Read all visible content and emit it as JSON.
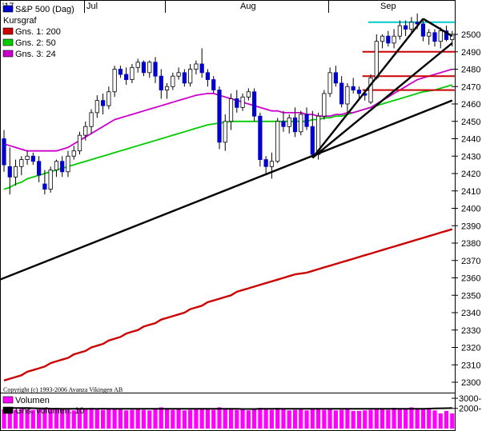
{
  "chart_data": {
    "type": "candlestick",
    "legend": [
      {
        "label": "S&P 500 (Dag)",
        "color": "#0000cc"
      },
      {
        "label": "Kursgraf",
        "color": ""
      },
      {
        "label": "Gns. 1: 200",
        "color": "#cc0000"
      },
      {
        "label": "Gns. 2: 50",
        "color": "#00cc00"
      },
      {
        "label": "Gns. 3: 24",
        "color": "#cc00cc"
      }
    ],
    "month_labels": [
      "'17",
      "Jul",
      "Aug",
      "Sep"
    ],
    "y_ticks": [
      2300,
      2310,
      2320,
      2330,
      2340,
      2350,
      2360,
      2370,
      2380,
      2390,
      2400,
      2410,
      2420,
      2430,
      2440,
      2450,
      2460,
      2470,
      2480,
      2490,
      2500
    ],
    "ylim": [
      2295,
      2512
    ],
    "candles": [
      [
        2440,
        2445,
        2421,
        2425
      ],
      [
        2424,
        2435,
        2408,
        2418
      ],
      [
        2418,
        2428,
        2413,
        2424
      ],
      [
        2424,
        2430,
        2419,
        2428
      ],
      [
        2428,
        2433,
        2425,
        2430
      ],
      [
        2430,
        2432,
        2425,
        2427
      ],
      [
        2427,
        2430,
        2415,
        2419
      ],
      [
        2414,
        2422,
        2408,
        2411
      ],
      [
        2411,
        2424,
        2409,
        2422
      ],
      [
        2422,
        2428,
        2418,
        2427
      ],
      [
        2427,
        2430,
        2418,
        2421
      ],
      [
        2421,
        2433,
        2418,
        2430
      ],
      [
        2430,
        2436,
        2428,
        2433
      ],
      [
        2433,
        2444,
        2431,
        2442
      ],
      [
        2442,
        2450,
        2439,
        2447
      ],
      [
        2447,
        2457,
        2443,
        2455
      ],
      [
        2455,
        2465,
        2452,
        2462
      ],
      [
        2462,
        2466,
        2454,
        2459
      ],
      [
        2459,
        2470,
        2457,
        2467
      ],
      [
        2467,
        2482,
        2464,
        2480
      ],
      [
        2480,
        2482,
        2475,
        2477
      ],
      [
        2477,
        2481,
        2471,
        2474
      ],
      [
        2474,
        2483,
        2472,
        2481
      ],
      [
        2481,
        2486,
        2478,
        2484
      ],
      [
        2484,
        2485,
        2476,
        2478
      ],
      [
        2478,
        2485,
        2475,
        2484
      ],
      [
        2484,
        2487,
        2472,
        2476
      ],
      [
        2476,
        2480,
        2463,
        2468
      ],
      [
        2468,
        2472,
        2463,
        2470
      ],
      [
        2470,
        2478,
        2468,
        2476
      ],
      [
        2476,
        2481,
        2474,
        2478
      ],
      [
        2478,
        2480,
        2470,
        2472
      ],
      [
        2472,
        2483,
        2470,
        2480
      ],
      [
        2480,
        2485,
        2477,
        2483
      ],
      [
        2483,
        2492,
        2475,
        2478
      ],
      [
        2478,
        2480,
        2470,
        2474
      ],
      [
        2474,
        2476,
        2466,
        2468
      ],
      [
        2468,
        2470,
        2434,
        2438
      ],
      [
        2438,
        2454,
        2433,
        2450
      ],
      [
        2450,
        2466,
        2445,
        2463
      ],
      [
        2463,
        2468,
        2455,
        2458
      ],
      [
        2458,
        2466,
        2456,
        2464
      ],
      [
        2464,
        2469,
        2462,
        2467
      ],
      [
        2467,
        2469,
        2450,
        2453
      ],
      [
        2453,
        2455,
        2424,
        2428
      ],
      [
        2428,
        2430,
        2419,
        2424
      ],
      [
        2424,
        2432,
        2417,
        2427
      ],
      [
        2427,
        2452,
        2426,
        2450
      ],
      [
        2450,
        2456,
        2444,
        2447
      ],
      [
        2447,
        2454,
        2443,
        2452
      ],
      [
        2452,
        2458,
        2441,
        2444
      ],
      [
        2444,
        2456,
        2442,
        2454
      ],
      [
        2454,
        2458,
        2445,
        2447
      ],
      [
        2447,
        2456,
        2429,
        2431
      ],
      [
        2431,
        2455,
        2428,
        2453
      ],
      [
        2453,
        2468,
        2451,
        2466
      ],
      [
        2466,
        2481,
        2464,
        2478
      ],
      [
        2478,
        2482,
        2470,
        2472
      ],
      [
        2472,
        2476,
        2458,
        2460
      ],
      [
        2460,
        2472,
        2455,
        2470
      ],
      [
        2470,
        2475,
        2466,
        2468
      ],
      [
        2468,
        2470,
        2463,
        2466
      ],
      [
        2466,
        2468,
        2462,
        2465
      ],
      [
        2461,
        2477,
        2460,
        2475
      ],
      [
        2475,
        2500,
        2474,
        2496
      ],
      [
        2496,
        2500,
        2492,
        2499
      ],
      [
        2499,
        2502,
        2493,
        2495
      ],
      [
        2495,
        2503,
        2492,
        2499
      ],
      [
        2499,
        2508,
        2497,
        2505
      ],
      [
        2505,
        2508,
        2499,
        2503
      ],
      [
        2503,
        2510,
        2500,
        2507
      ],
      [
        2507,
        2512,
        2503,
        2506
      ],
      [
        2506,
        2508,
        2496,
        2499
      ],
      [
        2499,
        2503,
        2494,
        2501
      ],
      [
        2501,
        2503,
        2493,
        2496
      ],
      [
        2496,
        2504,
        2492,
        2502
      ],
      [
        2502,
        2505,
        2496,
        2497
      ],
      [
        2497,
        2502,
        2493,
        2500
      ]
    ],
    "ma_24": [
      2437,
      2436,
      2435,
      2434,
      2433,
      2433,
      2433,
      2433,
      2433,
      2433,
      2434,
      2435,
      2437,
      2439,
      2441,
      2443,
      2445,
      2447,
      2449,
      2451,
      2452,
      2453,
      2454,
      2455,
      2456,
      2457,
      2458,
      2459,
      2460,
      2461,
      2462,
      2463,
      2464,
      2465,
      2465.5,
      2466,
      2466,
      2465,
      2464,
      2463,
      2462,
      2461,
      2460,
      2459,
      2458,
      2457,
      2456,
      2456,
      2455,
      2455,
      2455,
      2455,
      2454,
      2454,
      2453,
      2453,
      2453,
      2454,
      2454,
      2455,
      2455,
      2456,
      2457,
      2458,
      2460,
      2462,
      2464,
      2466,
      2468,
      2470,
      2472,
      2474,
      2475,
      2476,
      2477,
      2478,
      2479,
      2480
    ],
    "ma_50": [
      2411,
      2412,
      2414,
      2415,
      2417,
      2418,
      2419,
      2420,
      2421,
      2422,
      2423,
      2424,
      2425,
      2426,
      2427,
      2428,
      2429,
      2430,
      2431,
      2432,
      2433,
      2434,
      2435,
      2436,
      2437,
      2438,
      2439,
      2440,
      2441,
      2442,
      2443,
      2444,
      2445,
      2446,
      2447,
      2448,
      2448.5,
      2449,
      2449.5,
      2450,
      2450,
      2450,
      2450,
      2450,
      2450,
      2450,
      2450,
      2450,
      2450,
      2450,
      2450,
      2450,
      2450,
      2451,
      2451,
      2452,
      2452,
      2453,
      2453,
      2454,
      2455,
      2456,
      2457,
      2458,
      2459,
      2460,
      2461,
      2462,
      2463,
      2464,
      2465,
      2466,
      2467,
      2467.5,
      2468,
      2469,
      2470,
      2471
    ],
    "ma_200": [
      2301,
      2302,
      2303,
      2304,
      2306,
      2307,
      2308,
      2309,
      2311,
      2312,
      2313,
      2314,
      2316,
      2317,
      2318,
      2320,
      2321,
      2322,
      2324,
      2325,
      2326,
      2328,
      2329,
      2330,
      2332,
      2333,
      2334,
      2336,
      2337,
      2338,
      2339,
      2340,
      2342,
      2343,
      2344,
      2346,
      2347,
      2348,
      2349,
      2350,
      2352,
      2353,
      2354,
      2355,
      2356,
      2357,
      2358,
      2359,
      2360,
      2361,
      2362,
      2362.5,
      2363,
      2364,
      2365,
      2366,
      2367,
      2368,
      2369,
      2370,
      2371,
      2372,
      2373,
      2374,
      2375,
      2376,
      2377,
      2378,
      2379,
      2380,
      2381,
      2382,
      2383,
      2384,
      2385,
      2386,
      2387,
      2388
    ],
    "trend_lines": [
      {
        "from": [
          0,
          2359
        ],
        "to": [
          77,
          2462
        ],
        "color": "#000000"
      },
      {
        "from": [
          53,
          2429
        ],
        "to": [
          77,
          2495
        ],
        "color": "#000000"
      },
      {
        "from": [
          53,
          2429
        ],
        "to": [
          72,
          2509
        ],
        "color": "#000000"
      },
      {
        "from": [
          72,
          2509
        ],
        "to": [
          77,
          2499
        ],
        "color": "#000000"
      }
    ],
    "horizontal_lines": [
      {
        "y": 2507,
        "from": 63,
        "to": 77,
        "color": "#00cccc"
      },
      {
        "y": 2490,
        "from": 62,
        "to": 77,
        "color": "#cc0000"
      },
      {
        "y": 2476,
        "from": 62,
        "to": 77,
        "color": "#cc0000"
      },
      {
        "y": 2468,
        "from": 62,
        "to": 77,
        "color": "#cc0000"
      }
    ],
    "volume": {
      "legend": [
        {
          "label": "Volumen",
          "color": "#ff00ff"
        },
        {
          "label": "Gns. volumen: 10",
          "color": "#000000"
        }
      ],
      "y_ticks": [
        2000,
        3000
      ],
      "ylim": [
        0,
        3400
      ],
      "values": [
        1900,
        1900,
        1850,
        2050,
        1900,
        1850,
        1900,
        2000,
        1900,
        2050,
        1900,
        1850,
        1800,
        1900,
        1950,
        2050,
        1900,
        1850,
        1950,
        2000,
        1900,
        1800,
        1850,
        1900,
        1850,
        1800,
        1900,
        2100,
        1900,
        1850,
        1900,
        1800,
        1850,
        1900,
        1950,
        1900,
        1850,
        2100,
        2000,
        1950,
        1850,
        1900,
        1800,
        2000,
        2050,
        1900,
        1850,
        2050,
        1900,
        1800,
        1850,
        1950,
        1800,
        1950,
        1900,
        1850,
        2000,
        1800,
        1850,
        1900,
        1750,
        1750,
        1800,
        1850,
        2000,
        2000,
        1850,
        2050,
        1900,
        2000,
        2100,
        2000,
        2000,
        1900,
        1800,
        1500,
        1750,
        1500
      ],
      "avg": [
        2050,
        2050,
        2040,
        2040,
        2030,
        2020,
        2000,
        2000,
        1980,
        1970,
        1960,
        1960,
        1950,
        1950,
        1950,
        1950,
        1960,
        1970,
        1960,
        1960,
        1950,
        1950,
        1950,
        1950,
        1950,
        1950,
        1950,
        1950,
        1950,
        1950,
        1950,
        1950,
        1950,
        1950,
        1950,
        1950,
        1950,
        1950,
        1950,
        1950,
        1950,
        1940,
        1940,
        1940,
        1950,
        1960,
        1960,
        1960,
        1950,
        1950,
        1950,
        1950,
        1950,
        1950,
        1950,
        1950,
        1950,
        1950,
        1950,
        1950,
        1950,
        1950,
        1950,
        1950,
        1950,
        1950,
        1950,
        1950,
        1950,
        1950,
        1950,
        1950,
        1960,
        1980,
        2000,
        2010,
        2020,
        2030
      ]
    },
    "copyright": "Copyright (c) 1993-2006 Avanza Vikingen AB"
  }
}
